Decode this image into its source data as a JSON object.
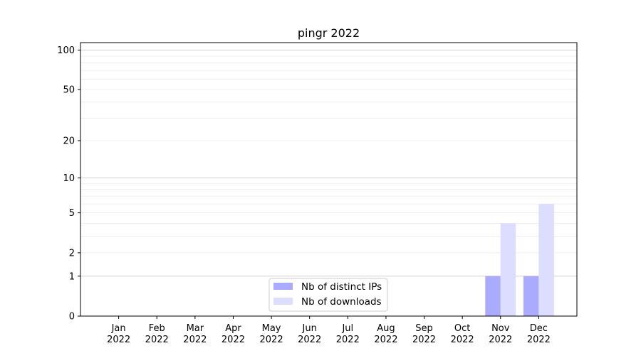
{
  "chart_data": {
    "type": "bar",
    "title": "pingr 2022",
    "xlabel": "",
    "ylabel": "",
    "y_scale": "log(1+y)",
    "ylim": [
      0,
      114
    ],
    "yticks": [
      0,
      1,
      2,
      5,
      10,
      20,
      50,
      100
    ],
    "grid": true,
    "legend_position": "lower-center",
    "categories": [
      "Jan\n2022",
      "Feb\n2022",
      "Mar\n2022",
      "Apr\n2022",
      "May\n2022",
      "Jun\n2022",
      "Jul\n2022",
      "Aug\n2022",
      "Sep\n2022",
      "Oct\n2022",
      "Nov\n2022",
      "Dec\n2022"
    ],
    "series": [
      {
        "name": "Nb of distinct IPs",
        "color": "#aaaaff",
        "values": [
          0,
          0,
          0,
          0,
          0,
          0,
          0,
          0,
          0,
          0,
          1,
          1
        ]
      },
      {
        "name": "Nb of downloads",
        "color": "#ddddff",
        "values": [
          0,
          0,
          0,
          0,
          0,
          0,
          0,
          0,
          0,
          0,
          4,
          6
        ]
      }
    ]
  }
}
